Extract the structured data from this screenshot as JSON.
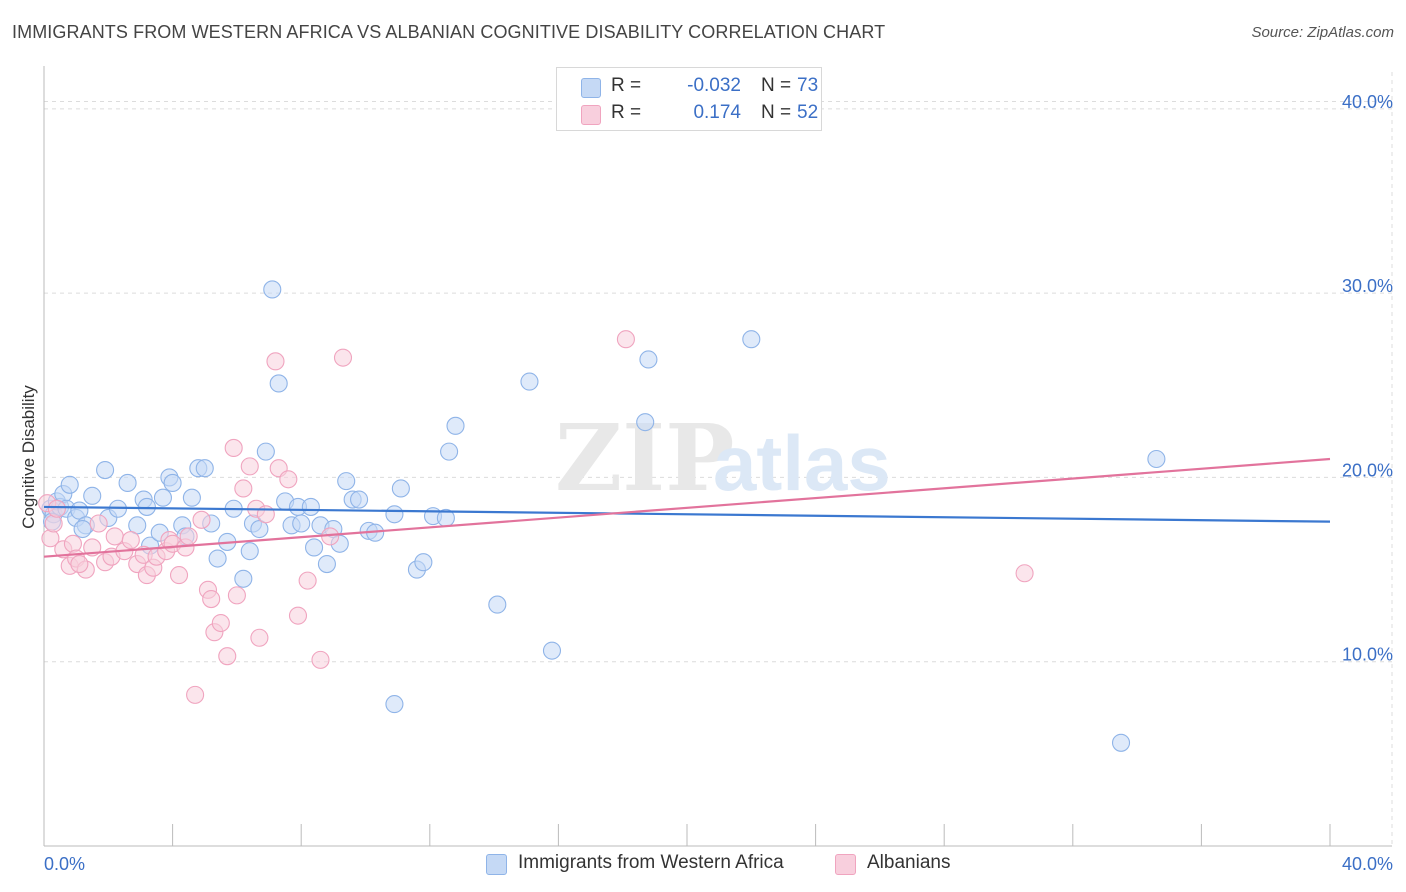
{
  "chart_data": {
    "type": "scatter",
    "title": "IMMIGRANTS FROM WESTERN AFRICA VS ALBANIAN COGNITIVE DISABILITY CORRELATION CHART",
    "source": "Source: ZipAtlas.com",
    "watermark": "ZIPatlas",
    "ylabel": "Cognitive Disability",
    "xlabel": "",
    "xlim": [
      0,
      40
    ],
    "ylim": [
      0,
      42
    ],
    "x_tick_labels": [
      "0.0%",
      "40.0%"
    ],
    "y_ticks": [
      10,
      20,
      30,
      40
    ],
    "y_tick_labels": [
      "10.0%",
      "20.0%",
      "30.0%",
      "40.0%"
    ],
    "grid": true,
    "legend_stats": [
      {
        "r_label": "R =",
        "r_value": "-0.032",
        "n_label": "N =",
        "n_value": "73"
      },
      {
        "r_label": "R =",
        "r_value": "0.174",
        "n_label": "N =",
        "n_value": "52"
      }
    ],
    "series": [
      {
        "name": "Immigrants from Western Africa",
        "color": "#8fb4e8",
        "fill": "#c5d9f5",
        "line_color": "#3b78d0",
        "trend": [
          [
            0,
            18.4
          ],
          [
            40,
            17.6
          ]
        ],
        "points": [
          [
            0.2,
            18.3
          ],
          [
            0.3,
            18.0
          ],
          [
            0.4,
            18.7
          ],
          [
            0.5,
            18.4
          ],
          [
            0.6,
            19.1
          ],
          [
            0.7,
            18.3
          ],
          [
            0.8,
            19.6
          ],
          [
            1.0,
            17.8
          ],
          [
            1.1,
            18.2
          ],
          [
            1.3,
            17.4
          ],
          [
            1.5,
            19.0
          ],
          [
            1.9,
            20.4
          ],
          [
            2.0,
            17.8
          ],
          [
            2.3,
            18.3
          ],
          [
            2.6,
            19.7
          ],
          [
            2.9,
            17.4
          ],
          [
            3.1,
            18.8
          ],
          [
            3.2,
            18.4
          ],
          [
            3.3,
            16.3
          ],
          [
            3.6,
            17.0
          ],
          [
            3.7,
            18.9
          ],
          [
            3.9,
            20.0
          ],
          [
            4.0,
            19.7
          ],
          [
            4.3,
            17.4
          ],
          [
            4.4,
            16.8
          ],
          [
            4.6,
            18.9
          ],
          [
            4.8,
            20.5
          ],
          [
            5.0,
            20.5
          ],
          [
            5.2,
            17.5
          ],
          [
            5.4,
            15.6
          ],
          [
            5.7,
            16.5
          ],
          [
            5.9,
            18.3
          ],
          [
            6.2,
            14.5
          ],
          [
            6.4,
            16.0
          ],
          [
            6.5,
            17.5
          ],
          [
            6.7,
            17.2
          ],
          [
            6.9,
            21.4
          ],
          [
            7.1,
            30.2
          ],
          [
            7.3,
            25.1
          ],
          [
            7.5,
            18.7
          ],
          [
            7.7,
            17.4
          ],
          [
            7.9,
            18.4
          ],
          [
            8.0,
            17.5
          ],
          [
            8.3,
            18.4
          ],
          [
            8.4,
            16.2
          ],
          [
            8.6,
            17.4
          ],
          [
            8.8,
            15.3
          ],
          [
            9.0,
            17.2
          ],
          [
            9.2,
            16.4
          ],
          [
            9.4,
            19.8
          ],
          [
            9.6,
            18.8
          ],
          [
            9.8,
            18.8
          ],
          [
            10.1,
            17.1
          ],
          [
            10.3,
            17.0
          ],
          [
            10.9,
            7.7
          ],
          [
            11.1,
            19.4
          ],
          [
            10.9,
            18.0
          ],
          [
            11.6,
            15.0
          ],
          [
            11.8,
            15.4
          ],
          [
            12.1,
            17.9
          ],
          [
            12.6,
            21.4
          ],
          [
            12.8,
            22.8
          ],
          [
            12.5,
            17.8
          ],
          [
            14.1,
            13.1
          ],
          [
            15.1,
            25.2
          ],
          [
            15.8,
            10.6
          ],
          [
            18.7,
            23.0
          ],
          [
            18.8,
            26.4
          ],
          [
            22.0,
            27.5
          ],
          [
            34.6,
            21.0
          ],
          [
            33.5,
            5.6
          ],
          [
            0.25,
            17.6
          ],
          [
            1.2,
            17.2
          ]
        ]
      },
      {
        "name": "Albanians",
        "color": "#f0a4bf",
        "fill": "#f8cfdd",
        "line_color": "#e2739c",
        "trend": [
          [
            0,
            15.7
          ],
          [
            40,
            21.0
          ]
        ],
        "points": [
          [
            0.1,
            18.6
          ],
          [
            0.2,
            16.7
          ],
          [
            0.3,
            17.5
          ],
          [
            0.4,
            18.3
          ],
          [
            0.6,
            16.1
          ],
          [
            0.8,
            15.2
          ],
          [
            0.9,
            16.4
          ],
          [
            1.0,
            15.6
          ],
          [
            1.3,
            15.0
          ],
          [
            1.5,
            16.2
          ],
          [
            1.7,
            17.5
          ],
          [
            1.9,
            15.4
          ],
          [
            2.1,
            15.7
          ],
          [
            2.2,
            16.8
          ],
          [
            2.5,
            16.0
          ],
          [
            2.7,
            16.6
          ],
          [
            2.9,
            15.3
          ],
          [
            3.1,
            15.8
          ],
          [
            3.2,
            14.7
          ],
          [
            3.4,
            15.1
          ],
          [
            3.5,
            15.7
          ],
          [
            3.8,
            16.0
          ],
          [
            3.9,
            16.6
          ],
          [
            4.0,
            16.4
          ],
          [
            4.2,
            14.7
          ],
          [
            4.4,
            16.2
          ],
          [
            4.5,
            16.8
          ],
          [
            4.7,
            8.2
          ],
          [
            4.9,
            17.7
          ],
          [
            5.1,
            13.9
          ],
          [
            5.2,
            13.4
          ],
          [
            5.3,
            11.6
          ],
          [
            5.5,
            12.1
          ],
          [
            5.7,
            10.3
          ],
          [
            5.9,
            21.6
          ],
          [
            6.0,
            13.6
          ],
          [
            6.2,
            19.4
          ],
          [
            6.4,
            20.6
          ],
          [
            6.6,
            18.3
          ],
          [
            6.7,
            11.3
          ],
          [
            6.9,
            18.0
          ],
          [
            7.2,
            26.3
          ],
          [
            7.3,
            20.5
          ],
          [
            7.6,
            19.9
          ],
          [
            7.9,
            12.5
          ],
          [
            8.2,
            14.4
          ],
          [
            8.6,
            10.1
          ],
          [
            8.9,
            16.8
          ],
          [
            9.3,
            26.5
          ],
          [
            18.1,
            27.5
          ],
          [
            30.5,
            14.8
          ],
          [
            1.1,
            15.3
          ]
        ]
      }
    ]
  }
}
